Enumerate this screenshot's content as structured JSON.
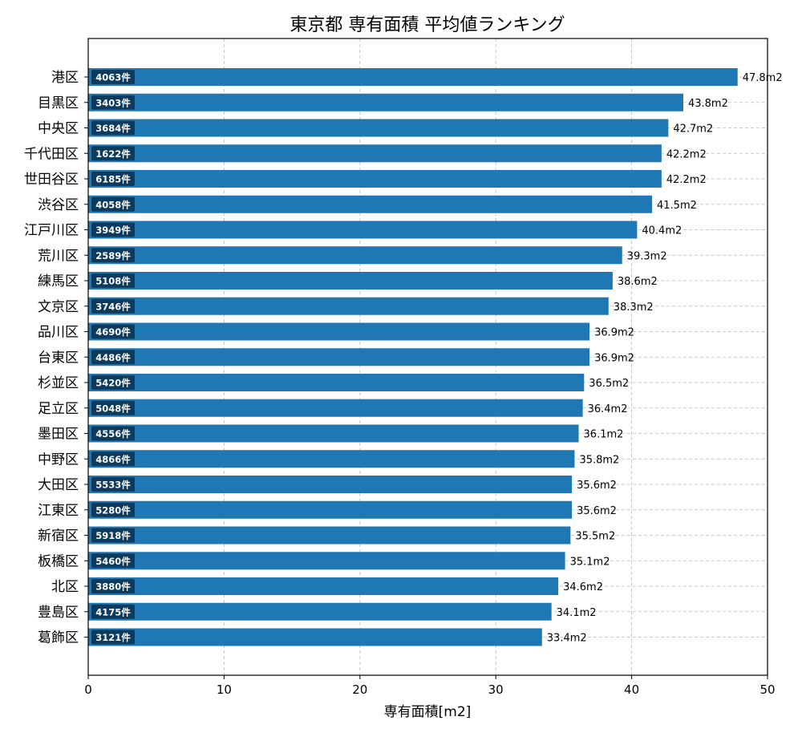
{
  "chart_data": {
    "type": "bar",
    "orientation": "horizontal",
    "title": "東京都 専有面積 平均値ランキング",
    "xlabel": "専有面積[m2]",
    "ylabel": "",
    "xlim": [
      0,
      50
    ],
    "xticks": [
      "0",
      "10",
      "20",
      "30",
      "40",
      "50"
    ],
    "grid": true,
    "legend": "none",
    "bar_color": "#1f77b4",
    "count_badge_color": "#0d3b5e",
    "value_suffix": "m2",
    "count_suffix": "件",
    "categories": [
      "港区",
      "目黒区",
      "中央区",
      "千代田区",
      "世田谷区",
      "渋谷区",
      "江戸川区",
      "荒川区",
      "練馬区",
      "文京区",
      "品川区",
      "台東区",
      "杉並区",
      "足立区",
      "墨田区",
      "中野区",
      "大田区",
      "江東区",
      "新宿区",
      "板橋区",
      "北区",
      "豊島区",
      "葛飾区"
    ],
    "values": [
      47.8,
      43.8,
      42.7,
      42.2,
      42.2,
      41.5,
      40.4,
      39.3,
      38.6,
      38.3,
      36.9,
      36.9,
      36.5,
      36.4,
      36.1,
      35.8,
      35.6,
      35.6,
      35.5,
      35.1,
      34.6,
      34.1,
      33.4
    ],
    "value_labels": [
      "47.8m2",
      "43.8m2",
      "42.7m2",
      "42.2m2",
      "42.2m2",
      "41.5m2",
      "40.4m2",
      "39.3m2",
      "38.6m2",
      "38.3m2",
      "36.9m2",
      "36.9m2",
      "36.5m2",
      "36.4m2",
      "36.1m2",
      "35.8m2",
      "35.6m2",
      "35.6m2",
      "35.5m2",
      "35.1m2",
      "34.6m2",
      "34.1m2",
      "33.4m2"
    ],
    "counts": [
      4063,
      3403,
      3684,
      1622,
      6185,
      4058,
      3949,
      2589,
      5108,
      3746,
      4690,
      4486,
      5420,
      5048,
      4556,
      4866,
      5533,
      5280,
      5918,
      5460,
      3880,
      4175,
      3121
    ],
    "count_labels": [
      "4063件",
      "3403件",
      "3684件",
      "1622件",
      "6185件",
      "4058件",
      "3949件",
      "2589件",
      "5108件",
      "3746件",
      "4690件",
      "4486件",
      "5420件",
      "5048件",
      "4556件",
      "4866件",
      "5533件",
      "5280件",
      "5918件",
      "5460件",
      "3880件",
      "4175件",
      "3121件"
    ]
  }
}
